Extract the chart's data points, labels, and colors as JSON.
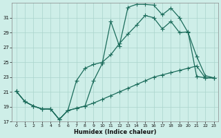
{
  "xlabel": "Humidex (Indice chaleur)",
  "bg_color": "#ceeee8",
  "line_color": "#1a6b5a",
  "grid_color": "#aad4cc",
  "ylim": [
    17,
    33
  ],
  "xlim": [
    -0.5,
    23.5
  ],
  "yticks": [
    17,
    19,
    21,
    23,
    25,
    27,
    29,
    31
  ],
  "xticks": [
    0,
    1,
    2,
    3,
    4,
    5,
    6,
    7,
    8,
    9,
    10,
    11,
    12,
    13,
    14,
    15,
    16,
    17,
    18,
    19,
    20,
    21,
    22,
    23
  ],
  "line1_x": [
    0,
    1,
    2,
    3,
    4,
    5,
    6,
    7,
    8,
    9,
    10,
    11,
    12,
    13,
    14,
    15,
    16,
    17,
    18,
    19,
    20,
    21,
    22,
    23
  ],
  "line1_y": [
    21.1,
    19.7,
    19.1,
    18.7,
    18.7,
    17.3,
    18.5,
    18.8,
    19.1,
    22.5,
    24.8,
    30.5,
    27.2,
    32.4,
    32.8,
    32.8,
    32.7,
    31.4,
    32.3,
    31.0,
    29.0,
    25.8,
    23.2,
    22.9
  ],
  "line2_x": [
    0,
    1,
    2,
    3,
    4,
    5,
    6,
    7,
    8,
    9,
    10,
    11,
    12,
    13,
    14,
    15,
    16,
    17,
    18,
    19,
    20,
    21,
    22,
    23
  ],
  "line2_y": [
    21.1,
    19.7,
    19.1,
    18.7,
    18.7,
    17.3,
    18.5,
    22.5,
    24.2,
    24.7,
    25.0,
    26.0,
    27.5,
    28.8,
    30.0,
    31.3,
    31.0,
    29.5,
    30.5,
    29.0,
    29.1,
    23.1,
    22.9,
    22.9
  ],
  "line3_x": [
    0,
    1,
    2,
    3,
    4,
    5,
    6,
    7,
    8,
    9,
    10,
    11,
    12,
    13,
    14,
    15,
    16,
    17,
    18,
    19,
    20,
    21,
    22,
    23
  ],
  "line3_y": [
    21.1,
    19.7,
    19.1,
    18.7,
    18.7,
    17.3,
    18.5,
    18.8,
    19.1,
    19.5,
    20.0,
    20.5,
    21.0,
    21.5,
    22.0,
    22.5,
    23.0,
    23.3,
    23.6,
    23.9,
    24.2,
    24.5,
    22.9,
    22.9
  ]
}
